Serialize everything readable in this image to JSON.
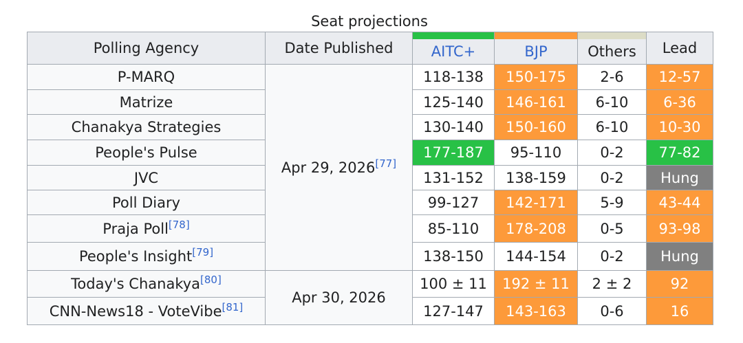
{
  "table": {
    "caption": "Seat projections",
    "header": [
      "Polling Agency",
      "Date Published",
      "AITC+",
      "BJP",
      "Others",
      "Lead"
    ],
    "dates": [
      {
        "date": "Apr 29, 2026",
        "ref": "[77]"
      },
      {
        "date": "Apr 30, 2026"
      }
    ],
    "rows": [
      {
        "agency": "P-MARQ",
        "aitc": "118-138",
        "bjp": "150-175",
        "others": "2-6",
        "lead": "12-57"
      },
      {
        "agency": "Matrize",
        "aitc": "125-140",
        "bjp": "146-161",
        "others": "6-10",
        "lead": "6-36"
      },
      {
        "agency": "Chanakya Strategies",
        "aitc": "130-140",
        "bjp": "150-160",
        "others": "6-10",
        "lead": "10-30"
      },
      {
        "agency": "People's Pulse",
        "aitc": "177-187",
        "bjp": "95-110",
        "others": "0-2",
        "lead": "77-82"
      },
      {
        "agency": "JVC",
        "aitc": "131-152",
        "bjp": "138-159",
        "others": "0-2",
        "lead": "Hung"
      },
      {
        "agency": "Poll Diary",
        "aitc": "99-127",
        "bjp": "142-171",
        "others": "5-9",
        "lead": "43-44"
      },
      {
        "agency": "Praja Poll",
        "ref": "[78]",
        "aitc": "85-110",
        "bjp": "178-208",
        "others": "0-5",
        "lead": "93-98"
      },
      {
        "agency": "People's Insight",
        "ref": "[79]",
        "aitc": "138-150",
        "bjp": "144-154",
        "others": "0-2",
        "lead": "Hung"
      },
      {
        "agency": "Today's Chanakya",
        "ref": "[80]",
        "aitc": "100 ± 11",
        "bjp": "192 ± 11",
        "others": "2 ± 2",
        "lead": "92"
      },
      {
        "agency": "CNN-News18 - VoteVibe",
        "ref": "[81]",
        "aitc": "127-147",
        "bjp": "143-163",
        "others": "0-6",
        "lead": "16"
      }
    ]
  }
}
